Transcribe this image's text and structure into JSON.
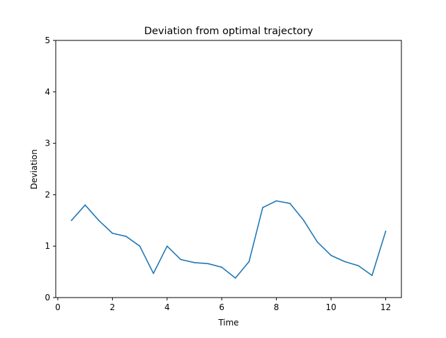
{
  "chart_data": {
    "type": "line",
    "title": "Deviation from optimal trajectory",
    "xlabel": "Time",
    "ylabel": "Deviation",
    "xlim": [
      -0.075,
      12.575
    ],
    "ylim": [
      0,
      5
    ],
    "xticks": [
      0,
      2,
      4,
      6,
      8,
      10,
      12
    ],
    "yticks": [
      0,
      1,
      2,
      3,
      4,
      5
    ],
    "grid": false,
    "series": [
      {
        "color": "#1f77b4",
        "x": [
          0.5,
          1.0,
          1.5,
          2.0,
          2.5,
          3.0,
          3.5,
          4.0,
          4.5,
          5.0,
          5.5,
          6.0,
          6.5,
          7.0,
          7.5,
          8.0,
          8.5,
          9.0,
          9.5,
          10.0,
          10.5,
          11.0,
          11.5,
          12.0
        ],
        "y": [
          1.5,
          1.8,
          1.5,
          1.25,
          1.19,
          1.0,
          0.47,
          1.0,
          0.74,
          0.68,
          0.66,
          0.59,
          0.38,
          0.7,
          1.75,
          1.88,
          1.83,
          1.5,
          1.08,
          0.82,
          0.7,
          0.62,
          0.43,
          1.29
        ]
      }
    ]
  }
}
